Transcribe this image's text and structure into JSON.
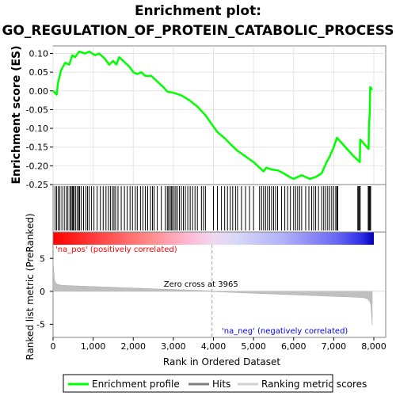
{
  "chart_data": {
    "type": "line",
    "title_line1": "Enrichment plot:",
    "title_line2": "GO_REGULATION_OF_PROTEIN_CATABOLIC_PROCESS",
    "es_ylabel": "Enrichment score (ES)",
    "metric_ylabel": "Ranked list metric (PreRanked)",
    "xlabel": "Rank in Ordered Dataset",
    "xlim": [
      0,
      8000
    ],
    "x_ticks": [
      0,
      1000,
      2000,
      3000,
      4000,
      5000,
      6000,
      7000,
      8000
    ],
    "x_tick_labels": [
      "0",
      "1,000",
      "2,000",
      "3,000",
      "4,000",
      "5,000",
      "6,000",
      "7,000",
      "8,000"
    ],
    "es_ylim": [
      -0.25,
      0.12
    ],
    "es_ticks": [
      -0.25,
      -0.2,
      -0.15,
      -0.1,
      -0.05,
      0.0,
      0.05,
      0.1
    ],
    "es_tick_labels": [
      "-0.25",
      "-0.20",
      "-0.15",
      "-0.10",
      "-0.05",
      "0.00",
      "0.05",
      "0.10"
    ],
    "metric_ylim": [
      -7,
      9
    ],
    "metric_ticks": [
      -5,
      0,
      5
    ],
    "metric_tick_labels": [
      "-5",
      "0",
      "5"
    ],
    "n_genes": 7960,
    "zero_cross": 3965,
    "zero_cross_label": "Zero cross at 3965",
    "pos_label": "'na_pos' (positively correlated)",
    "neg_label": "'na_neg' (negatively correlated)",
    "colors": {
      "es_line": "#00ff00",
      "pos_label": "#ff0000",
      "neg_label": "#0000ff",
      "metric_fill": "#c0c0c0",
      "hit_line": "#000000"
    },
    "legend": {
      "placement": "bottom",
      "entries": [
        {
          "label": "Enrichment profile",
          "kind": "line",
          "color": "#00ff00"
        },
        {
          "label": "Hits",
          "kind": "line",
          "color": "#808080"
        },
        {
          "label": "Ranking metric scores",
          "kind": "line",
          "color": "#d0d0d0"
        }
      ]
    },
    "es_profile": [
      [
        0,
        0.0
      ],
      [
        90,
        -0.01
      ],
      [
        120,
        0.02
      ],
      [
        200,
        0.055
      ],
      [
        300,
        0.075
      ],
      [
        400,
        0.07
      ],
      [
        480,
        0.095
      ],
      [
        550,
        0.09
      ],
      [
        650,
        0.105
      ],
      [
        800,
        0.1
      ],
      [
        900,
        0.105
      ],
      [
        1050,
        0.095
      ],
      [
        1150,
        0.1
      ],
      [
        1300,
        0.085
      ],
      [
        1400,
        0.07
      ],
      [
        1500,
        0.08
      ],
      [
        1580,
        0.07
      ],
      [
        1650,
        0.09
      ],
      [
        1800,
        0.075
      ],
      [
        1900,
        0.065
      ],
      [
        2000,
        0.05
      ],
      [
        2100,
        0.045
      ],
      [
        2200,
        0.05
      ],
      [
        2300,
        0.04
      ],
      [
        2450,
        0.04
      ],
      [
        2600,
        0.025
      ],
      [
        2750,
        0.01
      ],
      [
        2850,
        -0.002
      ],
      [
        3000,
        -0.005
      ],
      [
        3200,
        -0.012
      ],
      [
        3400,
        -0.025
      ],
      [
        3600,
        -0.042
      ],
      [
        3800,
        -0.065
      ],
      [
        3965,
        -0.09
      ],
      [
        4100,
        -0.11
      ],
      [
        4300,
        -0.128
      ],
      [
        4450,
        -0.145
      ],
      [
        4600,
        -0.16
      ],
      [
        4800,
        -0.175
      ],
      [
        5000,
        -0.19
      ],
      [
        5150,
        -0.205
      ],
      [
        5250,
        -0.215
      ],
      [
        5320,
        -0.205
      ],
      [
        5450,
        -0.21
      ],
      [
        5600,
        -0.212
      ],
      [
        5750,
        -0.22
      ],
      [
        5900,
        -0.23
      ],
      [
        6000,
        -0.235
      ],
      [
        6100,
        -0.23
      ],
      [
        6200,
        -0.225
      ],
      [
        6400,
        -0.235
      ],
      [
        6550,
        -0.23
      ],
      [
        6700,
        -0.22
      ],
      [
        6800,
        -0.195
      ],
      [
        6900,
        -0.175
      ],
      [
        7000,
        -0.15
      ],
      [
        7080,
        -0.125
      ],
      [
        7500,
        -0.175
      ],
      [
        7650,
        -0.19
      ],
      [
        7660,
        -0.13
      ],
      [
        7870,
        -0.155
      ],
      [
        7880,
        -0.1
      ],
      [
        7900,
        -0.05
      ],
      [
        7910,
        0.01
      ],
      [
        7960,
        0.003
      ]
    ],
    "hits": [
      50,
      90,
      130,
      170,
      220,
      280,
      330,
      370,
      420,
      450,
      480,
      500,
      520,
      560,
      600,
      640,
      660,
      700,
      760,
      820,
      860,
      900,
      960,
      1020,
      1100,
      1180,
      1250,
      1320,
      1380,
      1430,
      1480,
      1520,
      1560,
      1620,
      1700,
      1780,
      1850,
      1920,
      1980,
      2050,
      2100,
      2180,
      2240,
      2300,
      2360,
      2430,
      2480,
      2520,
      2600,
      2700,
      2800,
      2850,
      2880,
      2920,
      2950,
      2980,
      3020,
      3060,
      3100,
      3150,
      3200,
      3250,
      3300,
      3360,
      3420,
      3480,
      3540,
      3600,
      3700,
      3750,
      3800,
      4000,
      4100,
      4200,
      4280,
      4350,
      4420,
      4480,
      4550,
      4600,
      4700,
      4800,
      4900,
      5000,
      5150,
      5200,
      5250,
      5300,
      5350,
      5400,
      5450,
      5500,
      5550,
      5600,
      5700,
      5780,
      5850,
      5920,
      6000,
      6050,
      6100,
      6150,
      6200,
      6300,
      6380,
      6450,
      6500,
      6550,
      6620,
      6700,
      6750,
      6800,
      6850,
      6900,
      6950,
      7000,
      7050,
      7080,
      7100,
      7600,
      7620,
      7640,
      7660,
      7860,
      7880,
      7900,
      7920
    ]
  }
}
